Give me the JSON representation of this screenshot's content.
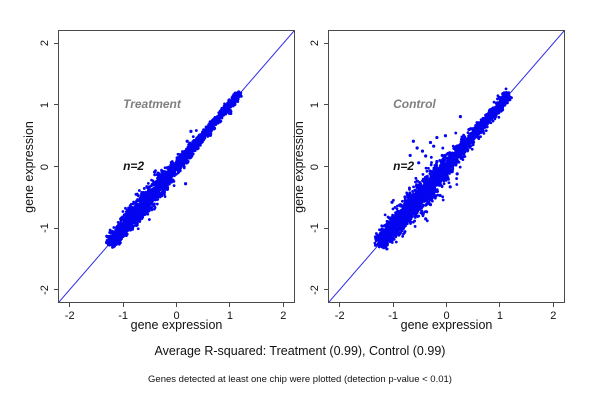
{
  "texts": {
    "summary": "Average R-squared: Treatment (0.99), Control (0.99)",
    "footnote": "Genes detected at least one chip were plotted (detection p-value < 0.01)"
  },
  "colors": {
    "points": "#0404f0",
    "identity_line": "#2a2ae8",
    "axis": "#4a4a4a",
    "text": "#111111",
    "group_label": "#7f7f7f",
    "n_label": "#141414",
    "background": "#ffffff"
  },
  "chart_data": [
    {
      "type": "scatter",
      "id": "treatment",
      "group_label": "Treatment",
      "n_label": "n=2",
      "r_squared": 0.99,
      "xlabel": "gene expression",
      "ylabel": "gene expression",
      "xlim": [
        -2.2,
        2.2
      ],
      "ylim": [
        -2.2,
        2.2
      ],
      "xticks": [
        -2,
        -1,
        0,
        1,
        2
      ],
      "yticks": [
        -2,
        -1,
        0,
        1,
        2
      ],
      "identity_line": true,
      "annotations": [
        {
          "text": "Treatment",
          "x": -1.0,
          "y": 1.0,
          "role": "group"
        },
        {
          "text": "n=2",
          "x": -1.0,
          "y": 0.0,
          "role": "nlab"
        }
      ],
      "cloud": {
        "t_min": -1.22,
        "t_max": 1.17,
        "n_core": 2600,
        "sigma_base": 0.03,
        "sigma_bulge": 0.05,
        "bulge_center": -0.6,
        "bulge_width": 0.55,
        "n_halo": 90,
        "halo_sigma": 0.085,
        "halo_t_min": -1.18,
        "halo_t_max": 0.6,
        "skew": 1.3,
        "seed": 42
      },
      "outliers": [
        [
          0.27,
          0.57
        ],
        [
          0.2,
          0.41
        ],
        [
          0.17,
          -0.28
        ],
        [
          -0.41,
          -0.09
        ]
      ]
    },
    {
      "type": "scatter",
      "id": "control",
      "group_label": "Control",
      "n_label": "n=2",
      "r_squared": 0.99,
      "xlabel": "gene expression",
      "ylabel": "gene expression",
      "xlim": [
        -2.2,
        2.2
      ],
      "ylim": [
        -2.2,
        2.2
      ],
      "xticks": [
        -2,
        -1,
        0,
        1,
        2
      ],
      "yticks": [
        -2,
        -1,
        0,
        1,
        2
      ],
      "identity_line": true,
      "annotations": [
        {
          "text": "Control",
          "x": -1.0,
          "y": 1.0,
          "role": "group"
        },
        {
          "text": "n=2",
          "x": -1.0,
          "y": 0.0,
          "role": "nlab"
        }
      ],
      "cloud": {
        "t_min": -1.22,
        "t_max": 1.17,
        "n_core": 2600,
        "sigma_base": 0.042,
        "sigma_bulge": 0.055,
        "bulge_center": -0.55,
        "bulge_width": 0.55,
        "n_halo": 140,
        "halo_sigma": 0.13,
        "halo_t_min": -1.15,
        "halo_t_max": 0.35,
        "skew": 1.3,
        "seed": 1337
      },
      "outliers": [
        [
          -0.45,
          0.25
        ],
        [
          -0.3,
          0.39
        ],
        [
          -0.18,
          0.47
        ],
        [
          -0.02,
          0.5
        ],
        [
          -0.24,
          0.33
        ],
        [
          -0.39,
          0.17
        ],
        [
          -0.55,
          0.3
        ],
        [
          -0.62,
          0.41
        ],
        [
          -0.68,
          0.18
        ],
        [
          -0.52,
          0.06
        ],
        [
          0.26,
          0.81
        ],
        [
          0.42,
          0.6
        ],
        [
          -1.02,
          -0.58
        ],
        [
          -0.39,
          -0.85
        ],
        [
          -0.12,
          -0.47
        ],
        [
          0.07,
          -0.33
        ],
        [
          0.2,
          -0.12
        ],
        [
          -0.3,
          -0.62
        ],
        [
          -0.18,
          0.08
        ],
        [
          -0.08,
          0.18
        ]
      ]
    }
  ]
}
